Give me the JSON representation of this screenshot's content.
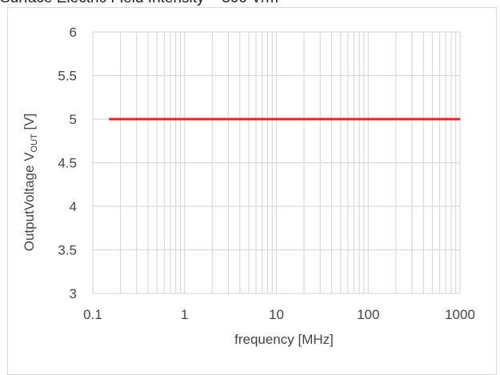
{
  "chart_data": {
    "type": "line",
    "title": "Surface Electric Field Intensity = 300 V/m",
    "xlabel": "frequency [MHz]",
    "ylabel": {
      "main": "OutputVoltage V",
      "sub": "OUT",
      "unit": " [V]"
    },
    "x_scale": "log",
    "xlim": [
      0.1,
      1000
    ],
    "ylim": [
      3,
      6
    ],
    "x_ticks": [
      0.1,
      1,
      10,
      100,
      1000
    ],
    "x_tick_labels": [
      "0.1",
      "1",
      "10",
      "100",
      "1000"
    ],
    "y_ticks": [
      3,
      3.5,
      4,
      4.5,
      5,
      5.5,
      6
    ],
    "y_tick_labels": [
      "3",
      "3.5",
      "4",
      "4.5",
      "5",
      "5.5",
      "6"
    ],
    "grid": true,
    "series": [
      {
        "color": "#e8202a",
        "x": [
          0.15,
          1,
          10,
          100,
          1000
        ],
        "y": [
          5,
          5,
          5,
          5,
          5
        ]
      }
    ]
  }
}
